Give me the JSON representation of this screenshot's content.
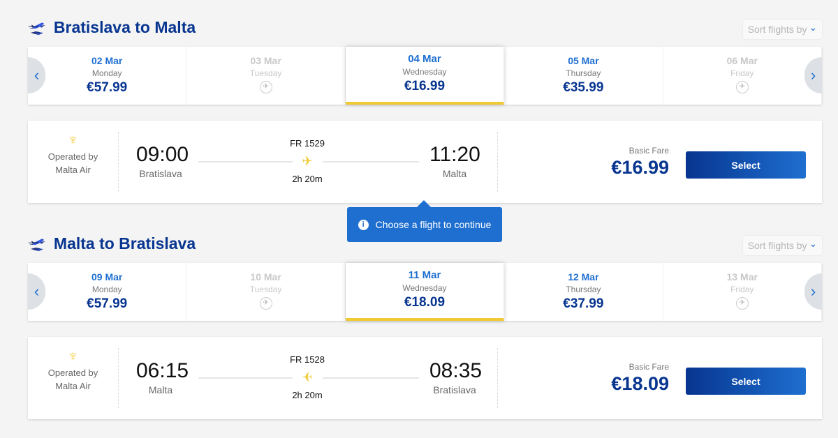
{
  "colors": {
    "brand": "#073590",
    "accent": "#1e6fd0",
    "yellow": "#f1c933"
  },
  "sort_label": "Sort flights by",
  "tooltip": "Choose a flight to continue",
  "trips": [
    {
      "title": "Bratislava to Malta",
      "days": [
        {
          "date": "02 Mar",
          "weekday": "Monday",
          "price": "€57.99"
        },
        {
          "date": "03 Mar",
          "weekday": "Tuesday",
          "price": null
        },
        {
          "date": "04 Mar",
          "weekday": "Wednesday",
          "price": "€16.99",
          "selected": true
        },
        {
          "date": "05 Mar",
          "weekday": "Thursday",
          "price": "€35.99"
        },
        {
          "date": "06 Mar",
          "weekday": "Friday",
          "price": null
        }
      ],
      "flight": {
        "operated_label": "Operated by",
        "operator": "Malta Air",
        "depart": "09:00",
        "from": "Bratislava",
        "flight_no": "FR 1529",
        "duration": "2h 20m",
        "arrive": "11:20",
        "to": "Malta",
        "fare_label": "Basic Fare",
        "price": "€16.99",
        "select_label": "Select"
      }
    },
    {
      "title": "Malta to Bratislava",
      "days": [
        {
          "date": "09 Mar",
          "weekday": "Monday",
          "price": "€57.99"
        },
        {
          "date": "10 Mar",
          "weekday": "Tuesday",
          "price": null
        },
        {
          "date": "11 Mar",
          "weekday": "Wednesday",
          "price": "€18.09",
          "selected": true
        },
        {
          "date": "12 Mar",
          "weekday": "Thursday",
          "price": "€37.99"
        },
        {
          "date": "13 Mar",
          "weekday": "Friday",
          "price": null
        }
      ],
      "flight": {
        "operated_label": "Operated by",
        "operator": "Malta Air",
        "depart": "06:15",
        "from": "Malta",
        "flight_no": "FR 1528",
        "duration": "2h 20m",
        "arrive": "08:35",
        "to": "Bratislava",
        "fare_label": "Basic Fare",
        "price": "€18.09",
        "select_label": "Select"
      }
    }
  ]
}
